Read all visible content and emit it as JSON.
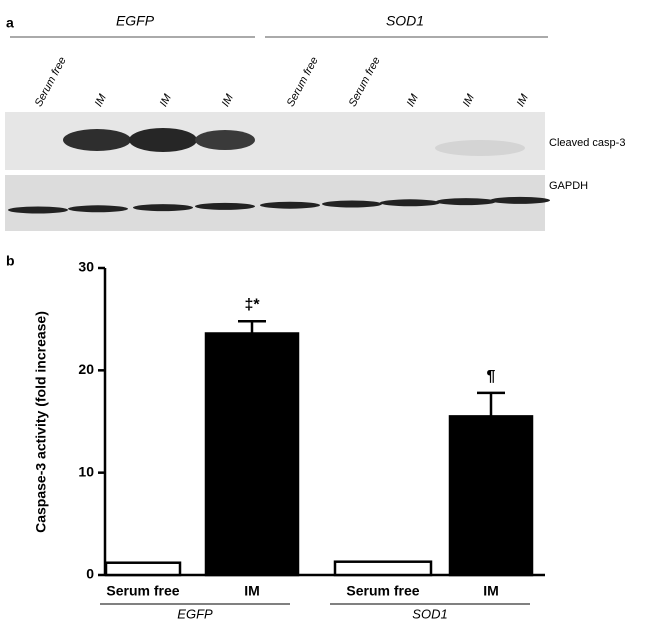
{
  "panel_a": {
    "label": "a",
    "groups": [
      "EGFP",
      "SOD1"
    ],
    "lanes": [
      "Serum free",
      "IM",
      "IM",
      "IM",
      "Serum free",
      "Serum free",
      "IM",
      "IM",
      "IM"
    ],
    "bands": [
      "Cleaved casp-3",
      "GAPDH"
    ]
  },
  "chart_data": {
    "type": "bar",
    "label": "b",
    "ylabel": "Caspase-3 activity (fold increase)",
    "categories": [
      "Serum free",
      "IM",
      "Serum free",
      "IM"
    ],
    "groups": [
      "EGFP",
      "SOD1"
    ],
    "values": [
      1.2,
      23.6,
      1.3,
      15.5
    ],
    "errors": [
      null,
      1.2,
      null,
      2.3
    ],
    "annotations": [
      null,
      "‡*",
      null,
      "¶"
    ],
    "colors": [
      "#ffffff",
      "#000000",
      "#ffffff",
      "#000000"
    ],
    "ylim": [
      0,
      30
    ],
    "yticks": [
      0,
      10,
      20,
      30
    ]
  }
}
